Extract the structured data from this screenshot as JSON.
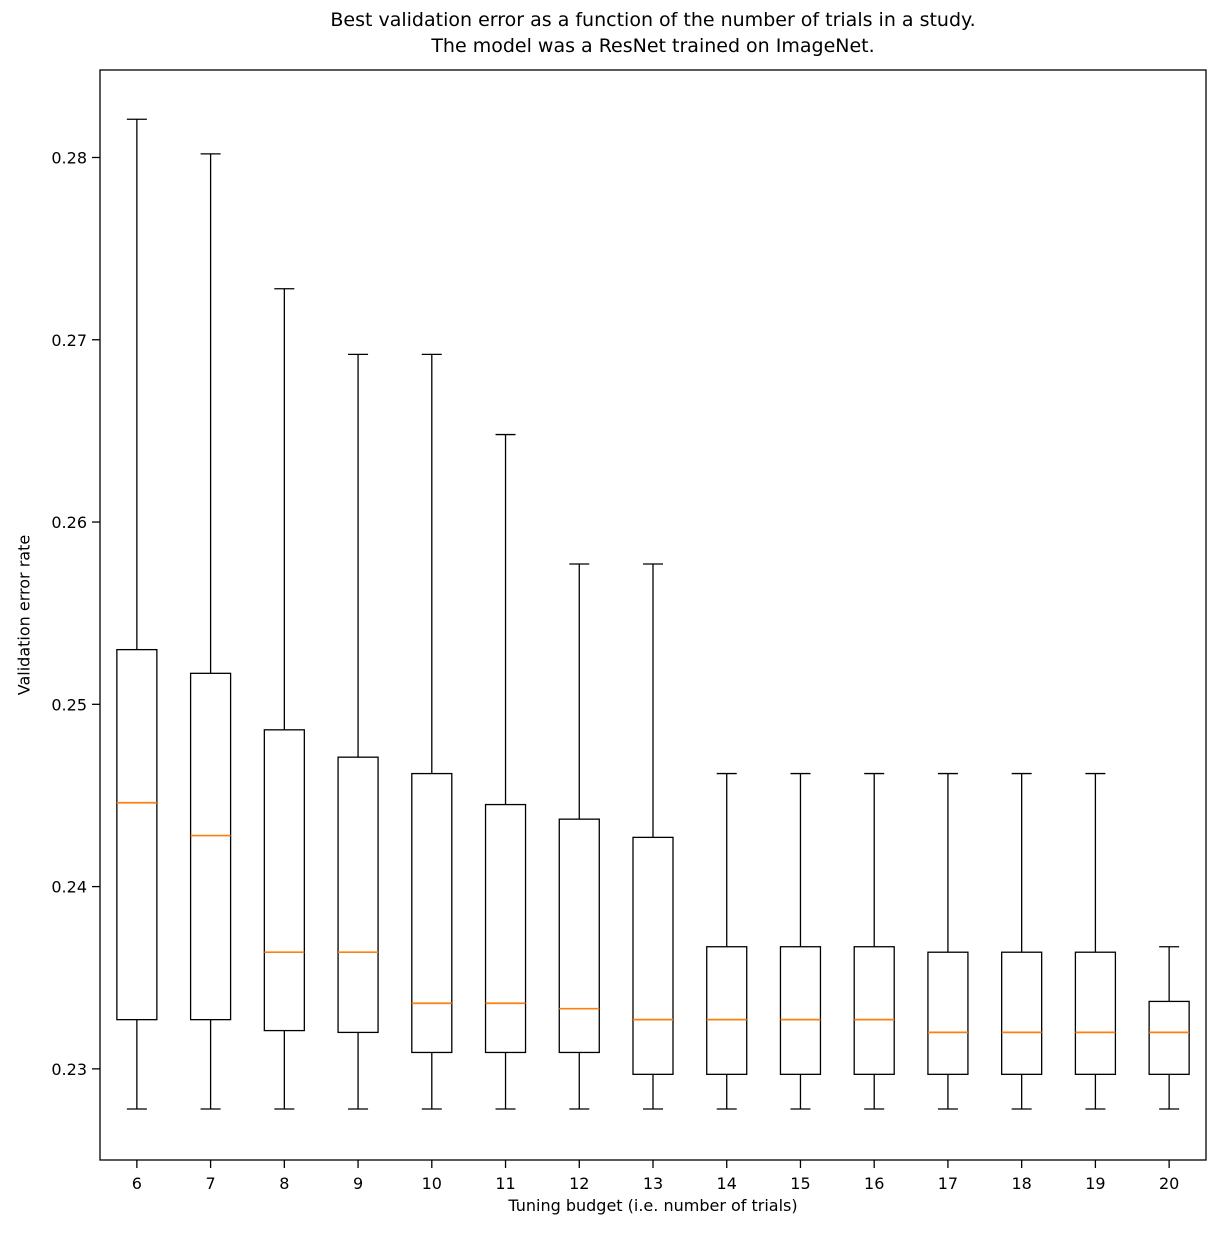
{
  "chart_data": {
    "type": "boxplot",
    "title_line1": "Best validation error as a function of the number of trials in a study.",
    "title_line2": "The model was a ResNet trained on ImageNet.",
    "xlabel": "Tuning budget (i.e. number of trials)",
    "ylabel": "Validation error rate",
    "categories": [
      6,
      7,
      8,
      9,
      10,
      11,
      12,
      13,
      14,
      15,
      16,
      17,
      18,
      19,
      20
    ],
    "y_ticks": [
      0.23,
      0.24,
      0.25,
      0.26,
      0.27,
      0.28
    ],
    "ylim": [
      0.225,
      0.2848
    ],
    "grid": false,
    "legend": "none",
    "box_fill": "#ffffff",
    "box_stroke": "#000000",
    "median_color": "#ff7f0e",
    "series": [
      {
        "x": 6,
        "whisker_low": 0.2278,
        "q1": 0.2327,
        "median": 0.2446,
        "q3": 0.253,
        "whisker_high": 0.2821
      },
      {
        "x": 7,
        "whisker_low": 0.2278,
        "q1": 0.2327,
        "median": 0.2428,
        "q3": 0.2517,
        "whisker_high": 0.2802
      },
      {
        "x": 8,
        "whisker_low": 0.2278,
        "q1": 0.2321,
        "median": 0.2364,
        "q3": 0.2486,
        "whisker_high": 0.2728
      },
      {
        "x": 9,
        "whisker_low": 0.2278,
        "q1": 0.232,
        "median": 0.2364,
        "q3": 0.2471,
        "whisker_high": 0.2692
      },
      {
        "x": 10,
        "whisker_low": 0.2278,
        "q1": 0.2309,
        "median": 0.2336,
        "q3": 0.2462,
        "whisker_high": 0.2692
      },
      {
        "x": 11,
        "whisker_low": 0.2278,
        "q1": 0.2309,
        "median": 0.2336,
        "q3": 0.2445,
        "whisker_high": 0.2648
      },
      {
        "x": 12,
        "whisker_low": 0.2278,
        "q1": 0.2309,
        "median": 0.2333,
        "q3": 0.2437,
        "whisker_high": 0.2577
      },
      {
        "x": 13,
        "whisker_low": 0.2278,
        "q1": 0.2297,
        "median": 0.2327,
        "q3": 0.2427,
        "whisker_high": 0.2577
      },
      {
        "x": 14,
        "whisker_low": 0.2278,
        "q1": 0.2297,
        "median": 0.2327,
        "q3": 0.2367,
        "whisker_high": 0.2462
      },
      {
        "x": 15,
        "whisker_low": 0.2278,
        "q1": 0.2297,
        "median": 0.2327,
        "q3": 0.2367,
        "whisker_high": 0.2462
      },
      {
        "x": 16,
        "whisker_low": 0.2278,
        "q1": 0.2297,
        "median": 0.2327,
        "q3": 0.2367,
        "whisker_high": 0.2462
      },
      {
        "x": 17,
        "whisker_low": 0.2278,
        "q1": 0.2297,
        "median": 0.232,
        "q3": 0.2364,
        "whisker_high": 0.2462
      },
      {
        "x": 18,
        "whisker_low": 0.2278,
        "q1": 0.2297,
        "median": 0.232,
        "q3": 0.2364,
        "whisker_high": 0.2462
      },
      {
        "x": 19,
        "whisker_low": 0.2278,
        "q1": 0.2297,
        "median": 0.232,
        "q3": 0.2364,
        "whisker_high": 0.2462
      },
      {
        "x": 20,
        "whisker_low": 0.2278,
        "q1": 0.2297,
        "median": 0.232,
        "q3": 0.2337,
        "whisker_high": 0.2367
      }
    ]
  }
}
